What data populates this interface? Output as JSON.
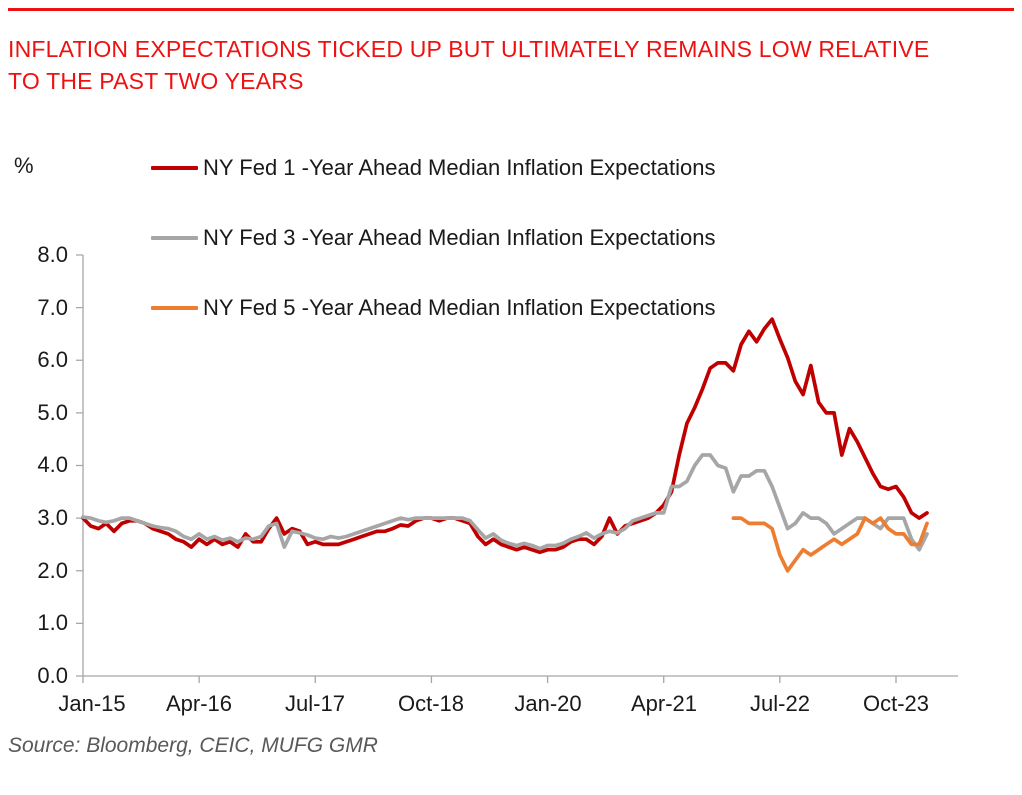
{
  "header": {
    "title": "INFLATION EXPECTATIONS TICKED UP BUT ULTIMATELY REMAINS LOW RELATIVE TO THE PAST TWO YEARS"
  },
  "source": {
    "text": "Source: Bloomberg, CEIC, MUFG GMR"
  },
  "colors": {
    "title_red": "#ed1111",
    "axis_gray": "#a6a6a6",
    "series_1yr": "#c00000",
    "series_3yr": "#a6a6a6",
    "series_5yr": "#ed7d31",
    "source_gray": "#595959"
  },
  "chart_data": {
    "type": "line",
    "title": "",
    "y_unit": "%",
    "ylim": [
      0,
      8
    ],
    "y_ticks": [
      "0.0",
      "1.0",
      "2.0",
      "3.0",
      "4.0",
      "5.0",
      "6.0",
      "7.0",
      "8.0"
    ],
    "x_ticks": [
      "Jan-15",
      "Apr-16",
      "Jul-17",
      "Oct-18",
      "Jan-20",
      "Apr-21",
      "Jul-22",
      "Oct-23"
    ],
    "x_tick_month_indices": [
      0,
      15,
      30,
      45,
      60,
      75,
      90,
      105
    ],
    "x_range": [
      "Jan-15",
      "Feb-24"
    ],
    "months_total": 110,
    "grid": false,
    "legend_position": "top-left",
    "series": [
      {
        "name": "NY Fed 1 -Year Ahead Median Inflation Expectations",
        "color": "#c00000",
        "start_month_index": 0,
        "values": [
          3.0,
          2.85,
          2.8,
          2.9,
          2.75,
          2.9,
          2.95,
          2.95,
          2.9,
          2.8,
          2.75,
          2.7,
          2.6,
          2.55,
          2.45,
          2.6,
          2.5,
          2.6,
          2.5,
          2.55,
          2.45,
          2.7,
          2.55,
          2.55,
          2.8,
          3.0,
          2.7,
          2.8,
          2.75,
          2.5,
          2.55,
          2.5,
          2.5,
          2.5,
          2.55,
          2.6,
          2.65,
          2.7,
          2.75,
          2.75,
          2.8,
          2.87,
          2.85,
          2.95,
          3.0,
          3.0,
          2.95,
          3.0,
          3.0,
          2.95,
          2.9,
          2.65,
          2.5,
          2.6,
          2.5,
          2.45,
          2.4,
          2.45,
          2.4,
          2.35,
          2.4,
          2.4,
          2.45,
          2.55,
          2.6,
          2.6,
          2.5,
          2.65,
          3.0,
          2.7,
          2.85,
          2.9,
          2.95,
          3.0,
          3.1,
          3.25,
          3.5,
          4.2,
          4.8,
          5.1,
          5.45,
          5.85,
          5.95,
          5.95,
          5.8,
          6.3,
          6.55,
          6.35,
          6.6,
          6.78,
          6.4,
          6.05,
          5.6,
          5.35,
          5.9,
          5.2,
          5.0,
          5.0,
          4.2,
          4.7,
          4.45,
          4.15,
          3.85,
          3.6,
          3.55,
          3.6,
          3.4,
          3.1,
          3.0,
          3.1
        ]
      },
      {
        "name": "NY Fed 3 -Year Ahead Median Inflation Expectations",
        "color": "#a6a6a6",
        "start_month_index": 0,
        "values": [
          3.02,
          3.0,
          2.95,
          2.92,
          2.95,
          3.0,
          3.0,
          2.95,
          2.9,
          2.85,
          2.82,
          2.8,
          2.75,
          2.65,
          2.6,
          2.7,
          2.6,
          2.65,
          2.58,
          2.62,
          2.55,
          2.62,
          2.6,
          2.65,
          2.85,
          2.9,
          2.45,
          2.75,
          2.72,
          2.68,
          2.62,
          2.6,
          2.65,
          2.62,
          2.65,
          2.7,
          2.75,
          2.8,
          2.85,
          2.9,
          2.95,
          3.0,
          2.97,
          3.0,
          3.0,
          3.0,
          3.0,
          3.0,
          3.0,
          3.0,
          2.95,
          2.78,
          2.62,
          2.7,
          2.58,
          2.52,
          2.48,
          2.52,
          2.48,
          2.42,
          2.48,
          2.48,
          2.52,
          2.6,
          2.65,
          2.72,
          2.62,
          2.7,
          2.75,
          2.72,
          2.8,
          2.95,
          3.0,
          3.05,
          3.1,
          3.1,
          3.6,
          3.6,
          3.7,
          4.0,
          4.2,
          4.2,
          4.0,
          3.95,
          3.5,
          3.8,
          3.8,
          3.9,
          3.9,
          3.6,
          3.2,
          2.8,
          2.9,
          3.1,
          3.0,
          3.0,
          2.9,
          2.7,
          2.8,
          2.9,
          3.0,
          3.0,
          2.9,
          2.8,
          3.0,
          3.0,
          3.0,
          2.6,
          2.4,
          2.7
        ]
      },
      {
        "name": "NY Fed 5 -Year Ahead Median Inflation Expectations",
        "color": "#ed7d31",
        "start_month_index": 84,
        "values": [
          3.0,
          3.0,
          2.9,
          2.9,
          2.9,
          2.8,
          2.3,
          2.0,
          2.2,
          2.4,
          2.3,
          2.4,
          2.5,
          2.6,
          2.5,
          2.6,
          2.7,
          3.0,
          2.9,
          3.0,
          2.8,
          2.7,
          2.7,
          2.5,
          2.5,
          2.9
        ]
      }
    ]
  }
}
